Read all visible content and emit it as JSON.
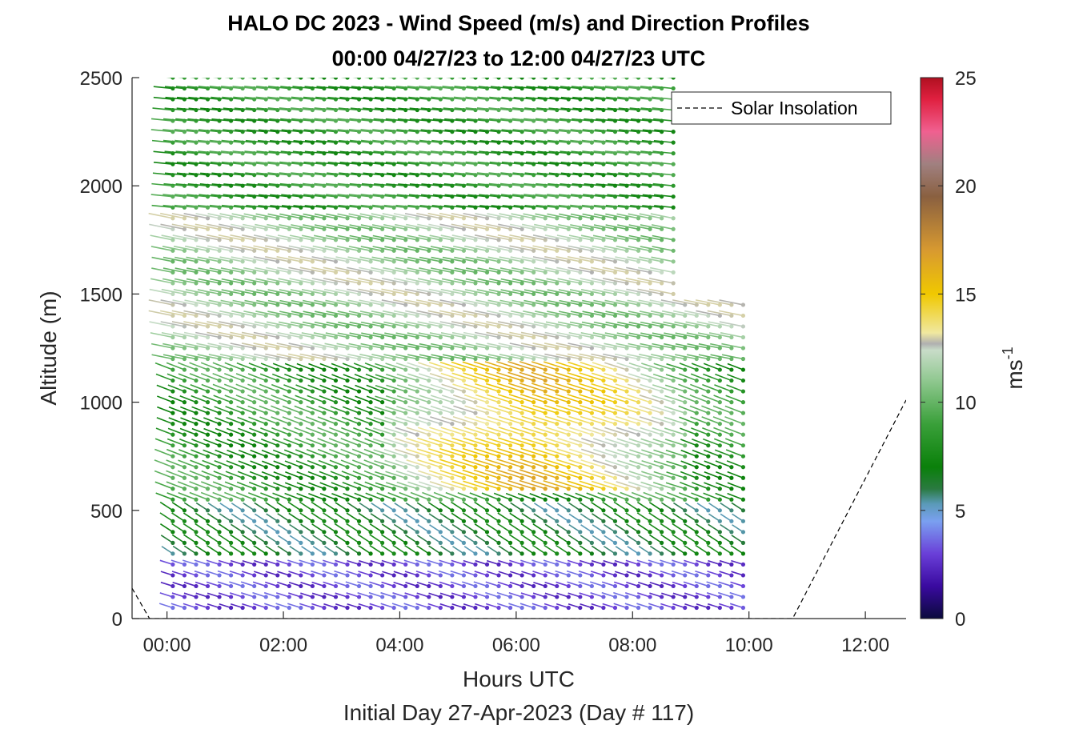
{
  "chart_data": {
    "type": "wind_barb_profile",
    "title_lines": [
      "HALO DC 2023 - Wind Speed (m/s) and Direction Profiles",
      "00:00 04/27/23 to 12:00 04/27/23  UTC"
    ],
    "xlabel": "Hours UTC",
    "xlabel_sub": "Initial Day 27-Apr-2023 (Day # 117)",
    "ylabel": "Altitude (m)",
    "xlim_hours": [
      -0.6,
      12.7
    ],
    "ylim": [
      0,
      2500
    ],
    "x_ticks": [
      {
        "hour": 0,
        "label": "00:00"
      },
      {
        "hour": 2,
        "label": "02:00"
      },
      {
        "hour": 4,
        "label": "04:00"
      },
      {
        "hour": 6,
        "label": "06:00"
      },
      {
        "hour": 8,
        "label": "08:00"
      },
      {
        "hour": 10,
        "label": "10:00"
      },
      {
        "hour": 12,
        "label": "12:00"
      }
    ],
    "y_ticks": [
      0,
      500,
      1000,
      1500,
      2000,
      2500
    ],
    "colorbar": {
      "label": "ms",
      "label_exponent": "-1",
      "range": [
        0,
        25
      ],
      "ticks": [
        0,
        5,
        10,
        15,
        20,
        25
      ],
      "stops": [
        {
          "v": 0,
          "c": "#0a0a3c"
        },
        {
          "v": 1.5,
          "c": "#3a0aa0"
        },
        {
          "v": 3,
          "c": "#6a3fd8"
        },
        {
          "v": 4.5,
          "c": "#7aa0f0"
        },
        {
          "v": 5.3,
          "c": "#5a9ab8"
        },
        {
          "v": 6,
          "c": "#2a7a40"
        },
        {
          "v": 7,
          "c": "#0a800a"
        },
        {
          "v": 9,
          "c": "#3aa03a"
        },
        {
          "v": 11,
          "c": "#90c890"
        },
        {
          "v": 12.4,
          "c": "#c8dcc8"
        },
        {
          "v": 12.7,
          "c": "#b0b0b0"
        },
        {
          "v": 13.2,
          "c": "#f0e8a0"
        },
        {
          "v": 15,
          "c": "#f0c800"
        },
        {
          "v": 17,
          "c": "#d89a30"
        },
        {
          "v": 19.5,
          "c": "#8a6040"
        },
        {
          "v": 21,
          "c": "#a08080"
        },
        {
          "v": 22.5,
          "c": "#f06090"
        },
        {
          "v": 24,
          "c": "#e02040"
        },
        {
          "v": 25,
          "c": "#b01020"
        }
      ]
    },
    "legend": {
      "label": "Solar Insolation",
      "style": "dashed",
      "placement": "top-right"
    },
    "solar_insolation_line": [
      {
        "hour": -0.6,
        "altitude": 140
      },
      {
        "hour": -0.3,
        "altitude": 0
      },
      {
        "hour": 10.75,
        "altitude": 0
      },
      {
        "hour": 12.7,
        "altitude": 1010
      }
    ],
    "barb_columns_hours": [
      0.1,
      0.3,
      0.5,
      0.7,
      0.9,
      1.1,
      1.3,
      1.5,
      1.7,
      1.9,
      2.1,
      2.3,
      2.5,
      2.7,
      2.9,
      3.1,
      3.3,
      3.5,
      3.7,
      3.9,
      4.1,
      4.3,
      4.5,
      4.7,
      4.9,
      5.1,
      5.3,
      5.5,
      5.7,
      5.9,
      6.1,
      6.3,
      6.5,
      6.7,
      6.9,
      7.1,
      7.3,
      7.5,
      7.7,
      7.9,
      8.1,
      8.3,
      8.5,
      8.7,
      8.9,
      9.1,
      9.3,
      9.5,
      9.7,
      9.9
    ],
    "barb_level_spacing_m": 50,
    "barb_top_altitude_m": 2500,
    "barb_top_altitude_after_8.7h_m": 1450,
    "wind_speed_regions": [
      {
        "description": "near surface",
        "altitude": [
          0,
          300
        ],
        "speed_ms": 3.0,
        "direction_deg": 300
      },
      {
        "description": "boundary layer",
        "altitude": [
          300,
          550
        ],
        "speed_ms": 6.5,
        "direction_deg": 320
      },
      {
        "description": "low-level jet",
        "altitude": [
          600,
          1200
        ],
        "hours": [
          3.8,
          9.0
        ],
        "speed_ms": 15.5,
        "direction_deg": 300
      },
      {
        "description": "mid levels",
        "altitude": [
          1200,
          1900
        ],
        "speed_ms": 11.5,
        "direction_deg": 290
      },
      {
        "description": "upper levels",
        "altitude": [
          1900,
          2500
        ],
        "speed_ms": 8.5,
        "direction_deg": 280
      }
    ]
  }
}
